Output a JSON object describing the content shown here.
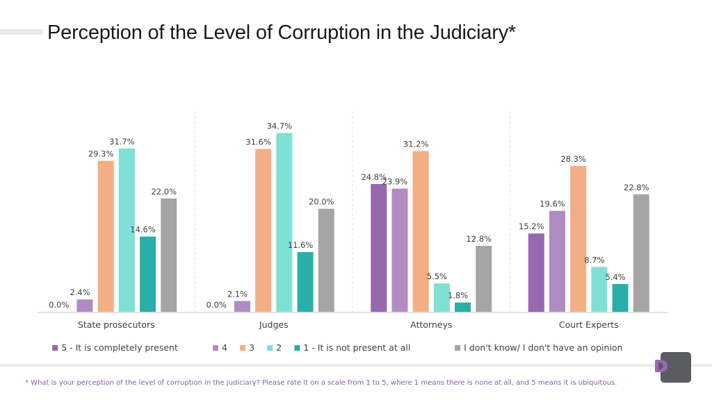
{
  "title": "Perception of the Level of Corruption in the Judiciary*",
  "footnote": "* What is your perception of the level of corruption in the judiciary? Please rate it on a scale from 1 to 5, where 1 means there is none at all, and 5 means it is ubiquitous.",
  "chart_data": {
    "type": "bar",
    "categories": [
      "State prosecutors",
      "Judges",
      "Attorneys",
      "Court Experts"
    ],
    "series": [
      {
        "name": "5 - It is completely present",
        "color": "#9767b0",
        "values": [
          0.0,
          0.0,
          24.8,
          15.2
        ],
        "labels": [
          "0.0%",
          "0.0%",
          "24.8%",
          "15.2%"
        ]
      },
      {
        "name": "4",
        "color": "#b18bc3",
        "values": [
          2.4,
          2.1,
          23.9,
          19.6
        ],
        "labels": [
          "2.4%",
          "2.1%",
          "23.9%",
          "19.6%"
        ]
      },
      {
        "name": "3",
        "color": "#f4ae84",
        "values": [
          29.3,
          31.6,
          31.2,
          28.3
        ],
        "labels": [
          "29.3%",
          "31.6%",
          "31.2%",
          "28.3%"
        ]
      },
      {
        "name": "2",
        "color": "#7fe0d6",
        "values": [
          31.7,
          34.7,
          5.5,
          8.7
        ],
        "labels": [
          "31.7%",
          "34.7%",
          "5.5%",
          "8.7%"
        ]
      },
      {
        "name": "1 - It is not present at all",
        "color": "#2aaea8",
        "values": [
          14.6,
          11.6,
          1.8,
          5.4
        ],
        "labels": [
          "14.6%",
          "11.6%",
          "1.8%",
          "5.4%"
        ]
      },
      {
        "name": "I don't know/ I don't have an opinion",
        "color": "#a5a5a5",
        "values": [
          22.0,
          20.0,
          12.8,
          22.8
        ],
        "labels": [
          "22.0%",
          "20.0%",
          "12.8%",
          "22.8%"
        ]
      }
    ],
    "ylim": [
      0,
      40
    ],
    "grid": false,
    "legend": "bottom"
  }
}
